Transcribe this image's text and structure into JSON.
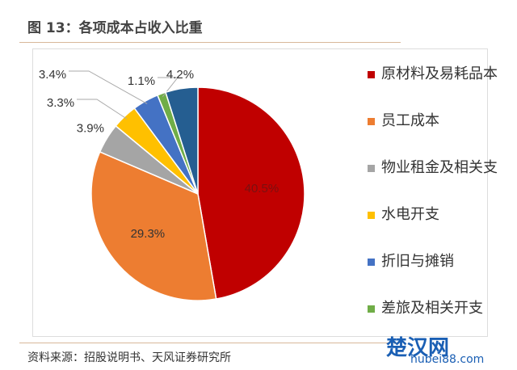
{
  "title": "图 13：各项成本占收入比重",
  "source": "资料来源：招股说明书、天风证券研究所",
  "watermark": {
    "logo": "楚汉网",
    "url": "hubei88.com"
  },
  "chart_data": {
    "type": "pie",
    "start": "top",
    "direction": "clockwise",
    "slices": [
      {
        "name": "原材料及易耗品本",
        "value": 40.5,
        "label": "40.5%",
        "color": "#c00000"
      },
      {
        "name": "员工成本",
        "value": 29.3,
        "label": "29.3%",
        "color": "#ed7d31"
      },
      {
        "name": "物业租金及相关支",
        "value": 3.9,
        "label": "3.9%",
        "color": "#a5a5a5"
      },
      {
        "name": "水电开支",
        "value": 3.3,
        "label": "3.3%",
        "color": "#ffc000"
      },
      {
        "name": "折旧与摊销",
        "value": 3.4,
        "label": "3.4%",
        "color": "#4472c4"
      },
      {
        "name": "差旅及相关开支",
        "value": 1.1,
        "label": "1.1%",
        "color": "#70ad47"
      },
      {
        "name": "",
        "value": 4.2,
        "label": "4.2%",
        "color": "#255e91"
      }
    ],
    "legend_placement": "right"
  }
}
